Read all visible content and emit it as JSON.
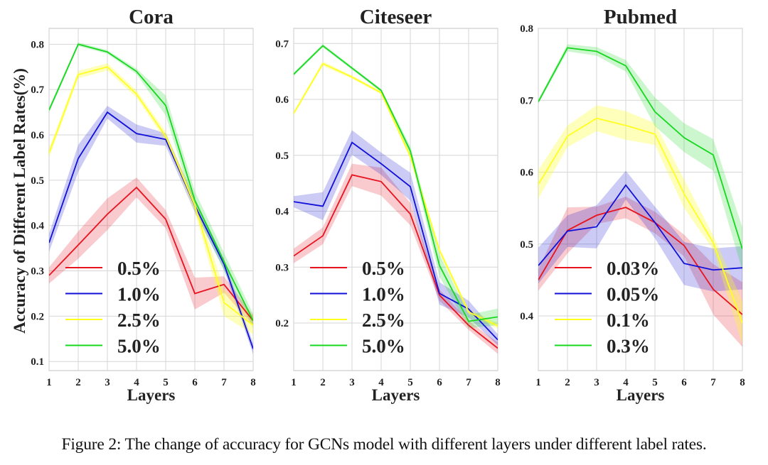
{
  "caption": "Figure 2: The change of accuracy for GCNs model with different layers under different label rates.",
  "colors": {
    "red": "#e8131f",
    "blue": "#1010d8",
    "yellow": "#ffff20",
    "green": "#16d81e",
    "grid": "#d6d6d6",
    "axis": "#cccccc"
  },
  "chart_data": [
    {
      "type": "line",
      "title": "Cora",
      "xlabel": "Layers",
      "ylabel": "Accuracy of Different Label Rates(%)",
      "x": [
        1,
        2,
        3,
        4,
        5,
        6,
        7,
        8
      ],
      "xticks": [
        "1",
        "2",
        "3",
        "4",
        "5",
        "6",
        "7",
        "8"
      ],
      "yticks": [
        "0.1",
        "0.2",
        "0.3",
        "0.4",
        "0.5",
        "0.6",
        "0.7",
        "0.8"
      ],
      "ytick_values": [
        0.1,
        0.2,
        0.3,
        0.4,
        0.5,
        0.6,
        0.7,
        0.8
      ],
      "ylim": [
        0.08,
        0.835
      ],
      "xlim": [
        1,
        8
      ],
      "grid": true,
      "legend_position": "lower-left",
      "series": [
        {
          "name": "0.5%",
          "color": "red",
          "values": [
            0.29,
            0.357,
            0.425,
            0.484,
            0.414,
            0.25,
            0.27,
            0.19
          ],
          "std": [
            0.018,
            0.03,
            0.035,
            0.022,
            0.02,
            0.035,
            0.018,
            0.012
          ]
        },
        {
          "name": "1.0%",
          "color": "blue",
          "values": [
            0.362,
            0.548,
            0.65,
            0.603,
            0.59,
            0.444,
            0.315,
            0.128
          ],
          "std": [
            0.02,
            0.03,
            0.014,
            0.02,
            0.014,
            0.015,
            0.012,
            0.012
          ]
        },
        {
          "name": "2.5%",
          "color": "yellow",
          "values": [
            0.56,
            0.733,
            0.75,
            0.69,
            0.597,
            0.445,
            0.23,
            0.18
          ],
          "std": [
            0.01,
            0.008,
            0.008,
            0.008,
            0.01,
            0.015,
            0.03,
            0.02
          ]
        },
        {
          "name": "5.0%",
          "color": "green",
          "values": [
            0.655,
            0.8,
            0.783,
            0.74,
            0.665,
            0.456,
            0.32,
            0.19
          ],
          "std": [
            0.006,
            0.004,
            0.004,
            0.006,
            0.022,
            0.02,
            0.02,
            0.015
          ]
        }
      ]
    },
    {
      "type": "line",
      "title": "Citeseer",
      "xlabel": "Layers",
      "ylabel": "",
      "x": [
        1,
        2,
        3,
        4,
        5,
        6,
        7,
        8
      ],
      "xticks": [
        "1",
        "2",
        "3",
        "4",
        "5",
        "6",
        "7",
        "8"
      ],
      "yticks": [
        "0.2",
        "0.3",
        "0.4",
        "0.5",
        "0.6",
        "0.7"
      ],
      "ytick_values": [
        0.2,
        0.3,
        0.4,
        0.5,
        0.6,
        0.7
      ],
      "ylim": [
        0.115,
        0.727
      ],
      "xlim": [
        1,
        8
      ],
      "grid": true,
      "legend_position": "lower-left",
      "series": [
        {
          "name": "0.5%",
          "color": "red",
          "values": [
            0.32,
            0.356,
            0.465,
            0.453,
            0.395,
            0.25,
            0.196,
            0.155
          ],
          "std": [
            0.013,
            0.015,
            0.02,
            0.025,
            0.02,
            0.01,
            0.008,
            0.01
          ]
        },
        {
          "name": "1.0%",
          "color": "blue",
          "values": [
            0.417,
            0.409,
            0.523,
            0.485,
            0.444,
            0.253,
            0.225,
            0.17
          ],
          "std": [
            0.01,
            0.025,
            0.022,
            0.02,
            0.025,
            0.02,
            0.015,
            0.01
          ]
        },
        {
          "name": "2.5%",
          "color": "yellow",
          "values": [
            0.575,
            0.664,
            0.64,
            0.612,
            0.498,
            0.33,
            0.22,
            0.195
          ],
          "std": [
            0.003,
            0.004,
            0.003,
            0.003,
            0.005,
            0.005,
            0.005,
            0.005
          ]
        },
        {
          "name": "5.0%",
          "color": "green",
          "values": [
            0.645,
            0.696,
            0.656,
            0.616,
            0.508,
            0.303,
            0.203,
            0.211
          ],
          "std": [
            0.003,
            0.003,
            0.003,
            0.003,
            0.008,
            0.02,
            0.012,
            0.015
          ]
        }
      ]
    },
    {
      "type": "line",
      "title": "Pubmed",
      "xlabel": "Layers",
      "ylabel": "",
      "x": [
        1,
        2,
        3,
        4,
        5,
        6,
        7,
        8
      ],
      "xticks": [
        "1",
        "2",
        "3",
        "4",
        "5",
        "6",
        "7",
        "8"
      ],
      "yticks": [
        "0.4",
        "0.5",
        "0.6",
        "0.7",
        "0.8"
      ],
      "ytick_values": [
        0.4,
        0.5,
        0.6,
        0.7,
        0.8
      ],
      "ylim": [
        0.324,
        0.8
      ],
      "xlim": [
        1,
        8
      ],
      "grid": true,
      "legend_position": "lower-left",
      "series": [
        {
          "name": "0.03%",
          "color": "red",
          "values": [
            0.45,
            0.519,
            0.54,
            0.551,
            0.53,
            0.498,
            0.437,
            0.402
          ],
          "std": [
            0.015,
            0.032,
            0.012,
            0.015,
            0.015,
            0.015,
            0.035,
            0.045
          ]
        },
        {
          "name": "0.05%",
          "color": "blue",
          "values": [
            0.47,
            0.518,
            0.524,
            0.582,
            0.53,
            0.473,
            0.464,
            0.467
          ],
          "std": [
            0.025,
            0.022,
            0.03,
            0.02,
            0.022,
            0.03,
            0.03,
            0.03
          ]
        },
        {
          "name": "0.1%",
          "color": "yellow",
          "values": [
            0.583,
            0.65,
            0.675,
            0.665,
            0.653,
            0.57,
            0.502,
            0.39
          ],
          "std": [
            0.02,
            0.015,
            0.018,
            0.02,
            0.015,
            0.02,
            0.01,
            0.03
          ]
        },
        {
          "name": "0.3%",
          "color": "green",
          "values": [
            0.698,
            0.773,
            0.768,
            0.748,
            0.684,
            0.648,
            0.624,
            0.493
          ],
          "std": [
            0.003,
            0.005,
            0.006,
            0.008,
            0.02,
            0.02,
            0.022,
            0.03
          ]
        }
      ]
    }
  ]
}
